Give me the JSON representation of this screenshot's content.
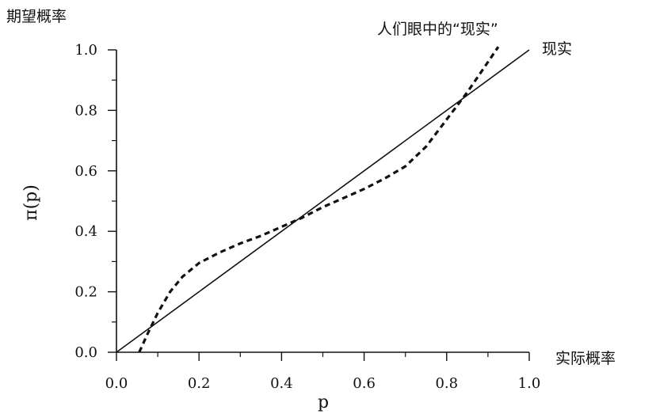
{
  "chart_data": {
    "type": "line",
    "xlim": [
      0,
      1
    ],
    "ylim": [
      0,
      1
    ],
    "x_ticks": [
      "0.0",
      "0.2",
      "0.4",
      "0.6",
      "0.8",
      "1.0"
    ],
    "y_ticks": [
      "0.0",
      "0.2",
      "0.4",
      "0.6",
      "0.8",
      "1.0"
    ],
    "xlabel": "p",
    "ylabel": "π(p)",
    "y_axis_title": "期望概率",
    "x_axis_title": "实际概率",
    "grid": false,
    "series": [
      {
        "name": "现实",
        "style": "solid",
        "x": [
          0,
          1
        ],
        "y": [
          0,
          1
        ]
      },
      {
        "name": "人们眼中的“现实”",
        "style": "dashed",
        "x": [
          0.055,
          0.075,
          0.1,
          0.13,
          0.16,
          0.2,
          0.25,
          0.3,
          0.35,
          0.4,
          0.45,
          0.5,
          0.55,
          0.6,
          0.65,
          0.7,
          0.75,
          0.8,
          0.85,
          0.88,
          0.905,
          0.925
        ],
        "y": [
          0.0,
          0.06,
          0.13,
          0.2,
          0.25,
          0.295,
          0.33,
          0.36,
          0.385,
          0.415,
          0.445,
          0.48,
          0.51,
          0.54,
          0.575,
          0.615,
          0.68,
          0.77,
          0.86,
          0.92,
          0.97,
          1.01
        ]
      }
    ]
  }
}
